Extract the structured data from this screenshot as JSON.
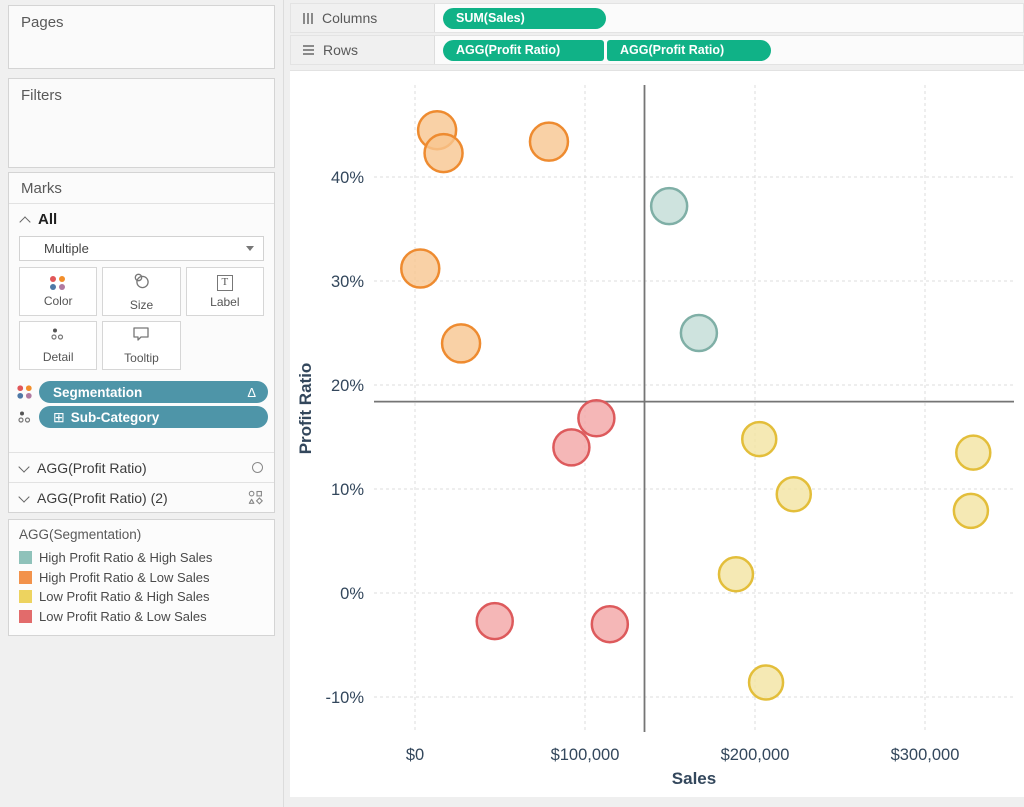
{
  "colors": {
    "pill_green": "#10B287",
    "pill_blue": "#4E95A8",
    "axis_text": "#33475C",
    "reference_line": "#757575"
  },
  "shelves": {
    "columns": {
      "label": "Columns",
      "pills": [
        "SUM(Sales)"
      ]
    },
    "rows": {
      "label": "Rows",
      "pills": [
        "AGG(Profit Ratio)",
        "AGG(Profit Ratio)"
      ]
    }
  },
  "panel": {
    "pages": {
      "title": "Pages"
    },
    "filters": {
      "title": "Filters"
    },
    "marks": {
      "title": "Marks",
      "all_label": "All",
      "mark_type": "Multiple",
      "buttons": [
        {
          "label": "Color",
          "icon": "color-icon"
        },
        {
          "label": "Size",
          "icon": "size-icon"
        },
        {
          "label": "Label",
          "icon": "label-icon"
        },
        {
          "label": "Detail",
          "icon": "detail-icon"
        },
        {
          "label": "Tooltip",
          "icon": "tooltip-icon"
        }
      ],
      "pills": [
        {
          "label": "Segmentation",
          "badge": "Δ",
          "icon": "color-icon"
        },
        {
          "label": "Sub-Category",
          "prefix": "⊞",
          "icon": "detail-icon"
        }
      ],
      "sections": [
        {
          "label": "AGG(Profit Ratio)",
          "icon": "circle-shape-icon"
        },
        {
          "label": "AGG(Profit Ratio) (2)",
          "icon": "shapes-icon"
        }
      ]
    },
    "legend": {
      "title": "AGG(Segmentation)",
      "items": [
        {
          "label": "High Profit Ratio & High Sales",
          "color": "#8FC2BA"
        },
        {
          "label": "High Profit Ratio & Low Sales",
          "color": "#F2924B"
        },
        {
          "label": "Low Profit Ratio & High Sales",
          "color": "#EDD35F"
        },
        {
          "label": "Low Profit Ratio & Low Sales",
          "color": "#E26B6B"
        }
      ]
    }
  },
  "chart_data": {
    "type": "scatter",
    "xlabel": "Sales",
    "ylabel": "Profit Ratio",
    "xlim": [
      -24000,
      354000
    ],
    "ylim": [
      -13.5,
      48.8
    ],
    "grid": true,
    "legend_position": "left-panel",
    "x_ticks": [
      {
        "value": 0,
        "label": "$0"
      },
      {
        "value": 100000,
        "label": "$100,000"
      },
      {
        "value": 200000,
        "label": "$200,000"
      },
      {
        "value": 300000,
        "label": "$300,000"
      }
    ],
    "y_ticks": [
      {
        "value": 40,
        "label": "40%"
      },
      {
        "value": 30,
        "label": "30%"
      },
      {
        "value": 20,
        "label": "20%"
      },
      {
        "value": 10,
        "label": "10%"
      },
      {
        "value": 0,
        "label": "0%"
      },
      {
        "value": -10,
        "label": "-10%"
      }
    ],
    "reference_lines": {
      "avg_sales_x": 135000,
      "avg_profit_ratio_y": 18.4
    },
    "series": [
      {
        "name": "High Profit Ratio & High Sales",
        "fill": "#C2DCD6",
        "stroke": "#7FAFA6",
        "radius": 18,
        "points": [
          {
            "x": 149500,
            "y": 37.2
          },
          {
            "x": 167000,
            "y": 25.0
          }
        ]
      },
      {
        "name": "High Profit Ratio & Low Sales",
        "fill": "#F8C690",
        "stroke": "#EE8B30",
        "radius": 19,
        "points": [
          {
            "x": 13000,
            "y": 44.5
          },
          {
            "x": 16800,
            "y": 42.3
          },
          {
            "x": 78800,
            "y": 43.4
          },
          {
            "x": 3100,
            "y": 31.2
          },
          {
            "x": 27100,
            "y": 24.0
          }
        ]
      },
      {
        "name": "Low Profit Ratio & High Sales",
        "fill": "#F3E3A1",
        "stroke": "#E3BE3A",
        "radius": 17,
        "points": [
          {
            "x": 202500,
            "y": 14.8
          },
          {
            "x": 222800,
            "y": 9.5
          },
          {
            "x": 188800,
            "y": 1.8
          },
          {
            "x": 206500,
            "y": -8.6
          },
          {
            "x": 328400,
            "y": 13.5
          },
          {
            "x": 327000,
            "y": 7.9
          }
        ]
      },
      {
        "name": "Low Profit Ratio & Low Sales",
        "fill": "#F2A5A5",
        "stroke": "#DD5A5C",
        "radius": 18,
        "points": [
          {
            "x": 106700,
            "y": 16.8
          },
          {
            "x": 92000,
            "y": 14.0
          },
          {
            "x": 46900,
            "y": -2.7
          },
          {
            "x": 114600,
            "y": -3.0
          }
        ]
      }
    ]
  }
}
